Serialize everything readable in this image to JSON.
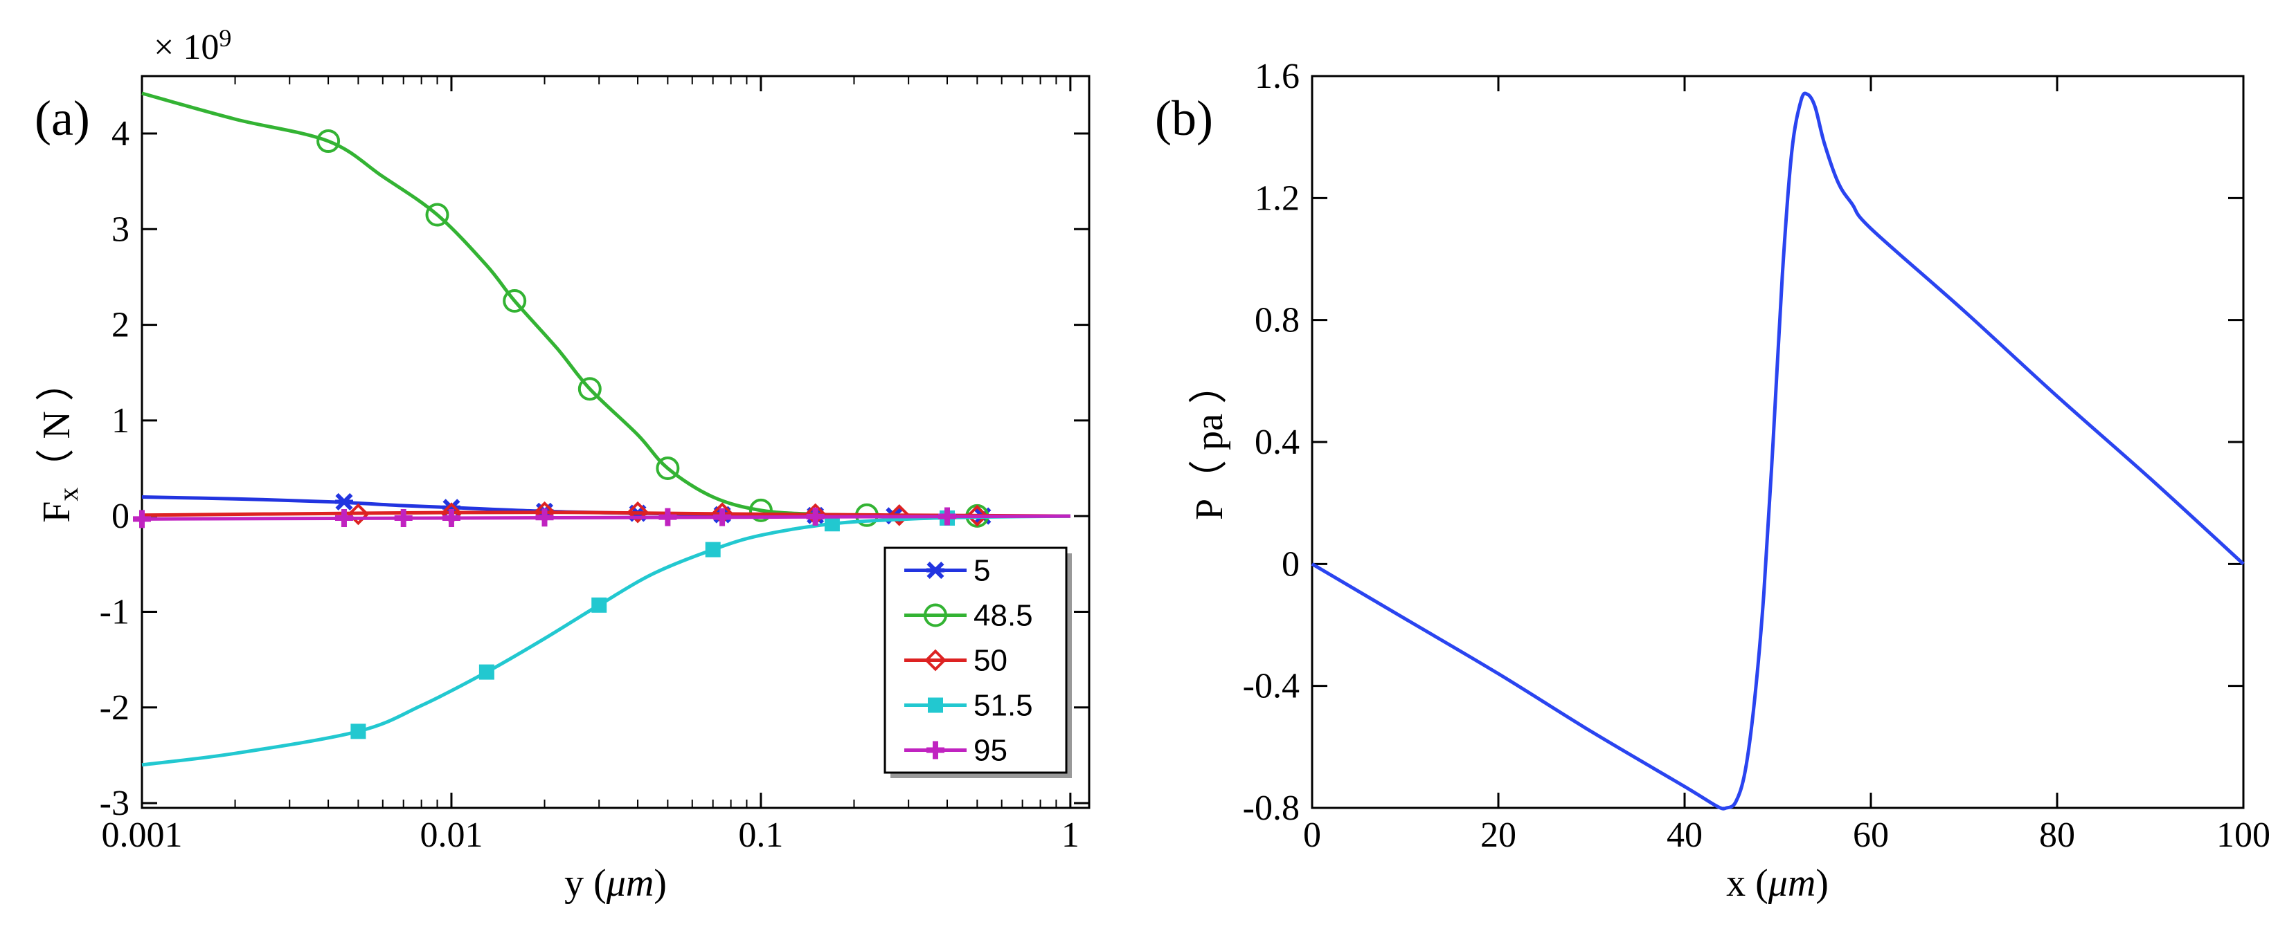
{
  "chart_data": [
    {
      "panel_label": "(a)",
      "type": "line",
      "xscale": "log",
      "xlim": [
        0.001,
        1.15
      ],
      "ylim": [
        -3.05,
        4.6
      ],
      "multiplier": "× 10",
      "multiplier_exp": "9",
      "xlabel_main": "y (",
      "xlabel_unit": "μm",
      "xlabel_end": ")",
      "ylabel_main": "F",
      "ylabel_sub": "x",
      "ylabel_unit": "（ N ）",
      "xticks": [
        {
          "v": 0.001,
          "label": "0.001"
        },
        {
          "v": 0.01,
          "label": "0.01"
        },
        {
          "v": 0.1,
          "label": "0.1"
        },
        {
          "v": 1,
          "label": "1"
        }
      ],
      "yticks": [
        {
          "v": 4,
          "label": "4"
        },
        {
          "v": 3,
          "label": "3"
        },
        {
          "v": 2,
          "label": "2"
        },
        {
          "v": 1,
          "label": "1"
        },
        {
          "v": 0,
          "label": "0"
        },
        {
          "v": -1,
          "label": "-1"
        },
        {
          "v": -2,
          "label": "-2"
        },
        {
          "v": -3,
          "label": "-3"
        }
      ],
      "series": [
        {
          "name": "5",
          "color": "#2234e0",
          "marker": "asterisk",
          "x": [
            0.001,
            0.002,
            0.004,
            0.007,
            0.01,
            0.02,
            0.04,
            0.08,
            0.15,
            0.3,
            0.55,
            1
          ],
          "y": [
            0.2,
            0.18,
            0.15,
            0.11,
            0.09,
            0.05,
            0.03,
            0.015,
            0.007,
            0.003,
            0.001,
            0
          ],
          "mx": [
            0.0045,
            0.01,
            0.02,
            0.04,
            0.075,
            0.15,
            0.27,
            0.52
          ],
          "my": [
            0.15,
            0.09,
            0.05,
            0.03,
            0.015,
            0.007,
            0.003,
            0.001
          ]
        },
        {
          "name": "48.5",
          "color": "#33b333",
          "marker": "circle",
          "x": [
            0.001,
            0.002,
            0.004,
            0.006,
            0.009,
            0.013,
            0.016,
            0.022,
            0.028,
            0.04,
            0.05,
            0.07,
            0.1,
            0.15,
            0.22,
            0.35,
            0.5,
            1
          ],
          "y": [
            4.42,
            4.15,
            3.92,
            3.55,
            3.15,
            2.62,
            2.25,
            1.75,
            1.33,
            0.85,
            0.5,
            0.2,
            0.06,
            0.02,
            0.01,
            0.005,
            0.002,
            0
          ],
          "mx": [
            0.004,
            0.009,
            0.016,
            0.028,
            0.05,
            0.1,
            0.22,
            0.5
          ],
          "my": [
            3.92,
            3.15,
            2.25,
            1.33,
            0.5,
            0.06,
            0.01,
            0.002
          ]
        },
        {
          "name": "50",
          "color": "#dd2222",
          "marker": "diamond",
          "x": [
            0.001,
            0.005,
            0.02,
            0.1,
            1
          ],
          "y": [
            0.01,
            0.03,
            0.04,
            0.02,
            0
          ],
          "mx": [
            0.005,
            0.01,
            0.02,
            0.04,
            0.075,
            0.15,
            0.28,
            0.5
          ],
          "my": [
            0.02,
            0.03,
            0.04,
            0.04,
            0.03,
            0.02,
            0.01,
            0.005
          ]
        },
        {
          "name": "51.5",
          "color": "#22c8d0",
          "marker": "square",
          "x": [
            0.001,
            0.002,
            0.005,
            0.008,
            0.013,
            0.02,
            0.03,
            0.045,
            0.07,
            0.1,
            0.17,
            0.3,
            0.5,
            1
          ],
          "y": [
            -2.6,
            -2.48,
            -2.25,
            -1.98,
            -1.63,
            -1.28,
            -0.93,
            -0.6,
            -0.35,
            -0.2,
            -0.08,
            -0.03,
            -0.01,
            0
          ],
          "mx": [
            0.005,
            0.013,
            0.03,
            0.07,
            0.17,
            0.4
          ],
          "my": [
            -2.25,
            -1.63,
            -0.93,
            -0.35,
            -0.08,
            -0.02
          ]
        },
        {
          "name": "95",
          "color": "#c023c0",
          "marker": "plus",
          "x": [
            0.001,
            0.01,
            0.1,
            1
          ],
          "y": [
            -0.03,
            -0.02,
            -0.01,
            0
          ],
          "mx": [
            0.001,
            0.0045,
            0.007,
            0.01,
            0.02,
            0.05,
            0.075,
            0.15,
            0.4
          ],
          "my": [
            -0.03,
            -0.02,
            -0.02,
            -0.02,
            -0.015,
            -0.01,
            -0.01,
            -0.005,
            -0.002
          ]
        }
      ],
      "legend_position": "bottom-right"
    },
    {
      "panel_label": "(b)",
      "type": "line",
      "xscale": "linear",
      "xlim": [
        0,
        100
      ],
      "ylim": [
        -0.8,
        1.6
      ],
      "xlabel_main": "x (",
      "xlabel_unit": "μm",
      "xlabel_end": ")",
      "ylabel_main": "P",
      "ylabel_sub": "",
      "ylabel_unit": "（ pa ）",
      "xticks": [
        {
          "v": 0,
          "label": "0"
        },
        {
          "v": 20,
          "label": "20"
        },
        {
          "v": 40,
          "label": "40"
        },
        {
          "v": 60,
          "label": "60"
        },
        {
          "v": 80,
          "label": "80"
        },
        {
          "v": 100,
          "label": "100"
        }
      ],
      "yticks": [
        {
          "v": 1.6,
          "label": "1.6"
        },
        {
          "v": 1.2,
          "label": "1.2"
        },
        {
          "v": 0.8,
          "label": "0.8"
        },
        {
          "v": 0.4,
          "label": "0.4"
        },
        {
          "v": 0,
          "label": "0"
        },
        {
          "v": -0.4,
          "label": "-0.4"
        },
        {
          "v": -0.8,
          "label": "-0.8"
        }
      ],
      "series": [
        {
          "name": "P",
          "color": "#2a44f0",
          "marker": "none",
          "x": [
            0,
            10,
            20,
            30,
            40,
            43.5,
            44.5,
            45.5,
            46.5,
            47.5,
            48.5,
            49.5,
            50.5,
            51.5,
            52.5,
            53.2,
            54,
            55,
            56.5,
            58,
            60,
            70,
            80,
            90,
            100
          ],
          "y": [
            0,
            -0.18,
            -0.36,
            -0.55,
            -0.73,
            -0.795,
            -0.8,
            -0.78,
            -0.68,
            -0.45,
            -0.1,
            0.4,
            0.95,
            1.35,
            1.52,
            1.54,
            1.5,
            1.38,
            1.25,
            1.18,
            1.1,
            0.83,
            0.55,
            0.28,
            0
          ]
        }
      ]
    }
  ]
}
